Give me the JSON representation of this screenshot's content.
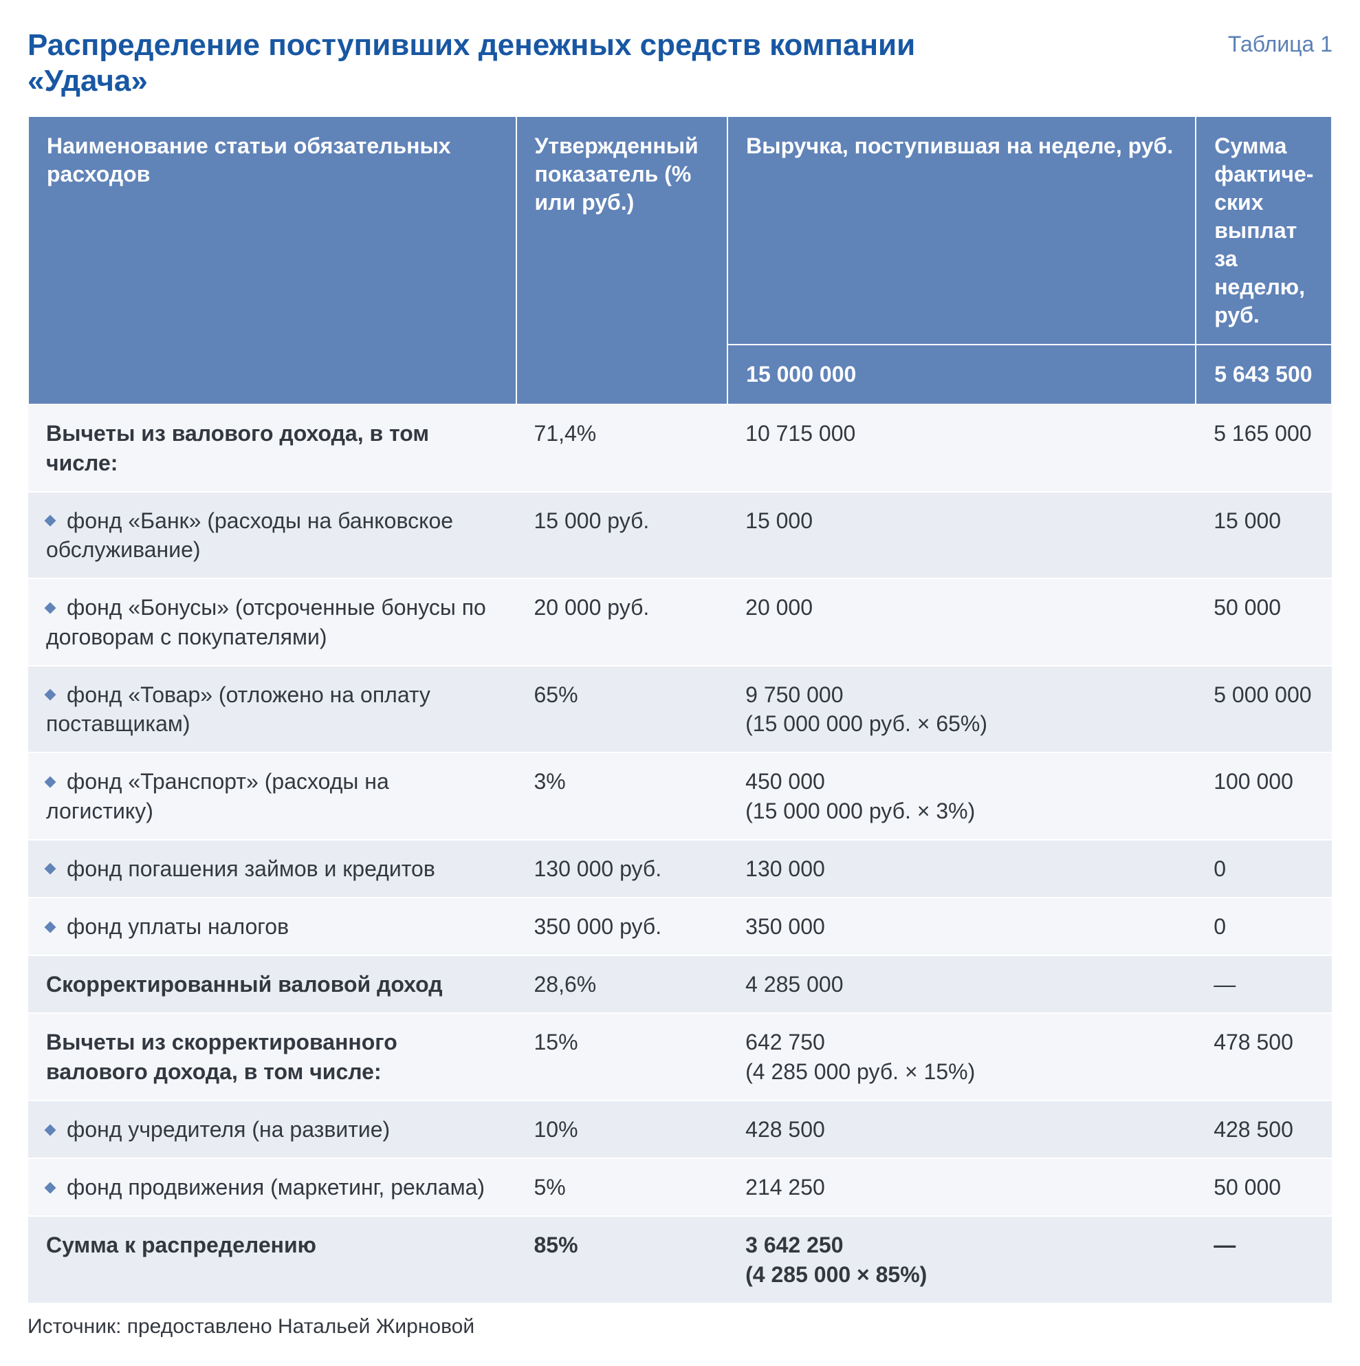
{
  "title": "Распределение поступивших денежных средств компании «Удача»",
  "table_label": "Таблица 1",
  "colors": {
    "title": "#1857a3",
    "header_bg": "#6083b8",
    "header_fg": "#ffffff",
    "row_even_bg": "#f4f6f9",
    "row_odd_bg": "#e9edf3",
    "bullet": "#6083b8",
    "text": "#333840",
    "label": "#5a7fb5"
  },
  "headers": {
    "col1": "Наименование статьи обязательных расходов",
    "col2": "Утвержден­ный показа­тель (% или руб.)",
    "col3": "Выручка, поступив­шая на неделе, руб.",
    "col4": "Сумма фактиче­ских выплат за неделю, руб."
  },
  "subheader": {
    "col3_value": "15 000 000",
    "col4_value": "5 643 500"
  },
  "rows": [
    {
      "bullet": false,
      "bold": true,
      "c1": "Вычеты из валового дохода, в том числе:",
      "c2": "71,4%",
      "c3": "10 715 000",
      "c4": "5 165 000"
    },
    {
      "bullet": true,
      "bold": false,
      "c1": "фонд «Банк» (расходы на банковское обслуживание)",
      "c2": "15 000 руб.",
      "c3": "15 000",
      "c4": "15 000"
    },
    {
      "bullet": true,
      "bold": false,
      "c1": "фонд «Бонусы» (отсроченные бонусы по договорам с покупателями)",
      "c2": "20 000 руб.",
      "c3": "20 000",
      "c4": "50 000"
    },
    {
      "bullet": true,
      "bold": false,
      "c1": "фонд «Товар» (отложено на оплату поставщикам)",
      "c2": "65%",
      "c3": "9 750 000\n(15 000 000 руб. × 65%)",
      "c4": "5 000 000"
    },
    {
      "bullet": true,
      "bold": false,
      "c1": "фонд «Транспорт» (расходы на логистику)",
      "c2": "3%",
      "c3": "450 000\n(15 000 000 руб. × 3%)",
      "c4": "100 000"
    },
    {
      "bullet": true,
      "bold": false,
      "c1": "фонд погашения займов и кредитов",
      "c2": "130 000 руб.",
      "c3": "130 000",
      "c4": "0"
    },
    {
      "bullet": true,
      "bold": false,
      "c1": "фонд уплаты налогов",
      "c2": "350 000 руб.",
      "c3": "350 000",
      "c4": "0"
    },
    {
      "bullet": false,
      "bold": true,
      "c1": "Скорректированный валовой доход",
      "c2": "28,6%",
      "c3": "4 285 000",
      "c4": " —"
    },
    {
      "bullet": false,
      "bold": true,
      "c1": "Вычеты из скорректированного валового дохода, в том числе:",
      "c2": "15%",
      "c3": "642 750\n(4 285 000 руб. × 15%)",
      "c4": "478 500"
    },
    {
      "bullet": true,
      "bold": false,
      "c1": "фонд учредителя (на развитие)",
      "c2": "10%",
      "c3": "428 500",
      "c4": "428 500"
    },
    {
      "bullet": true,
      "bold": false,
      "c1": "фонд продвижения (маркетинг, реклама)",
      "c2": "5%",
      "c3": "214 250",
      "c4": "50 000"
    },
    {
      "bullet": false,
      "bold": true,
      "c1": "Сумма к распределению",
      "c2": "85%",
      "c3": "3 642 250\n(4 285 000 × 85%)",
      "c4": "—"
    }
  ],
  "source": "Источник: предоставлено Натальей Жирновой"
}
